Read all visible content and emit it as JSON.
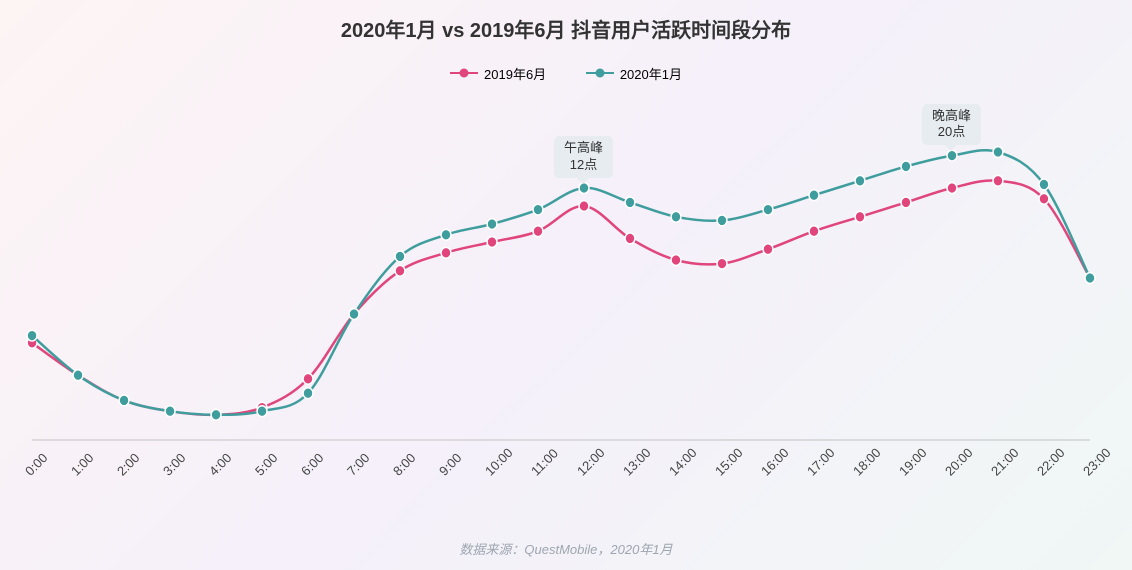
{
  "title": "2020年1月 vs 2019年6月 抖音用户活跃时间段分布",
  "source": "数据来源：QuestMobile，2020年1月",
  "legend": {
    "series1": "2019年6月",
    "series2": "2020年1月"
  },
  "chart": {
    "type": "line",
    "x_labels": [
      "0:00",
      "1:00",
      "2:00",
      "3:00",
      "4:00",
      "5:00",
      "6:00",
      "7:00",
      "8:00",
      "9:00",
      "10:00",
      "11:00",
      "12:00",
      "13:00",
      "14:00",
      "15:00",
      "16:00",
      "17:00",
      "18:00",
      "19:00",
      "20:00",
      "21:00",
      "22:00",
      "23:00"
    ],
    "ylim": [
      0,
      100
    ],
    "background_color": "transparent",
    "axis_color": "#cccccc",
    "label_fontsize": 13,
    "label_rotation": -45,
    "x_label_color": "#444444",
    "series": [
      {
        "name": "2019年6月",
        "color": "#e0457b",
        "marker": "circle",
        "line_width": 2.5,
        "marker_radius": 4.5,
        "values": [
          27,
          18,
          11,
          8,
          7,
          9,
          17,
          35,
          47,
          52,
          55,
          58,
          65,
          56,
          50,
          49,
          53,
          58,
          62,
          66,
          70,
          72,
          67,
          45
        ]
      },
      {
        "name": "2020年1月",
        "color": "#3f9d9d",
        "marker": "circle",
        "line_width": 2.5,
        "marker_radius": 4.5,
        "values": [
          29,
          18,
          11,
          8,
          7,
          8,
          13,
          35,
          51,
          57,
          60,
          64,
          70,
          66,
          62,
          61,
          64,
          68,
          72,
          76,
          79,
          80,
          71,
          45
        ]
      }
    ],
    "callouts": [
      {
        "line1": "午高峰",
        "line2": "12点",
        "x_index": 12,
        "target_series": 1
      },
      {
        "line1": "晚高峰",
        "line2": "20点",
        "x_index": 20,
        "target_series": 1
      }
    ]
  },
  "colors": {
    "title": "#333333",
    "callout_bg": "#e6ecf0",
    "callout_text": "#333333",
    "source_text": "#9ea6b0"
  }
}
